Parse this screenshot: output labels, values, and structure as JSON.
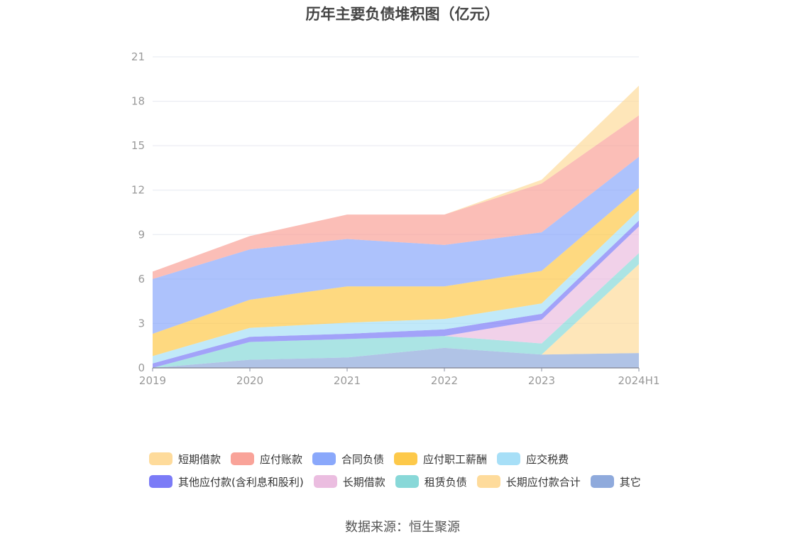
{
  "title": "历年主要负债堆积图（亿元）",
  "source": "数据来源：恒生聚源",
  "chart_data": {
    "type": "area",
    "stacked": true,
    "categories": [
      "2019",
      "2020",
      "2021",
      "2022",
      "2023",
      "2024H1"
    ],
    "ylim": [
      0,
      21
    ],
    "yticks": [
      0,
      3,
      6,
      9,
      12,
      15,
      18,
      21
    ],
    "grid": true,
    "legend_position": "bottom",
    "series": [
      {
        "name": "其它",
        "color": "#8faadc",
        "values": [
          0.0,
          0.55,
          0.7,
          1.35,
          0.9,
          1.0
        ]
      },
      {
        "name": "长期应付款合计",
        "color": "#fedb9b",
        "values": [
          0.0,
          0.0,
          0.0,
          0.0,
          0.0,
          6.0
        ]
      },
      {
        "name": "租赁负债",
        "color": "#88d8d8",
        "values": [
          0.0,
          1.2,
          1.25,
          0.8,
          0.75,
          0.75
        ]
      },
      {
        "name": "长期借款",
        "color": "#ebbde0",
        "values": [
          0.0,
          0.0,
          0.0,
          0.0,
          1.6,
          1.8
        ]
      },
      {
        "name": "其他应付款(含利息和股利)",
        "color": "#7b7bf7",
        "values": [
          0.3,
          0.35,
          0.35,
          0.45,
          0.4,
          0.4
        ]
      },
      {
        "name": "应交税费",
        "color": "#a7dff7",
        "values": [
          0.5,
          0.6,
          0.75,
          0.7,
          0.7,
          0.7
        ]
      },
      {
        "name": "应付职工薪酬",
        "color": "#fdc94a",
        "values": [
          1.5,
          1.9,
          2.45,
          2.2,
          2.2,
          1.5
        ]
      },
      {
        "name": "合同负债",
        "color": "#8aa8fb",
        "values": [
          3.7,
          3.4,
          3.2,
          2.8,
          2.6,
          2.1
        ]
      },
      {
        "name": "应付账款",
        "color": "#f9a399",
        "values": [
          0.5,
          0.9,
          1.65,
          2.05,
          3.3,
          2.8
        ]
      },
      {
        "name": "短期借款",
        "color": "#fedb9b",
        "values": [
          0.0,
          0.0,
          0.0,
          0.0,
          0.25,
          2.0
        ]
      }
    ]
  },
  "legend": {
    "rows": [
      [
        {
          "label": "短期借款",
          "color": "#fedb9b"
        },
        {
          "label": "应付账款",
          "color": "#f9a399"
        },
        {
          "label": "合同负债",
          "color": "#8aa8fb"
        },
        {
          "label": "应付职工薪酬",
          "color": "#fdc94a"
        },
        {
          "label": "应交税费",
          "color": "#a7dff7"
        }
      ],
      [
        {
          "label": "其他应付款(含利息和股利)",
          "color": "#7b7bf7"
        },
        {
          "label": "长期借款",
          "color": "#ebbde0"
        },
        {
          "label": "租赁负债",
          "color": "#88d8d8"
        },
        {
          "label": "长期应付款合计",
          "color": "#fedb9b"
        },
        {
          "label": "其它",
          "color": "#8faadc"
        }
      ]
    ]
  }
}
